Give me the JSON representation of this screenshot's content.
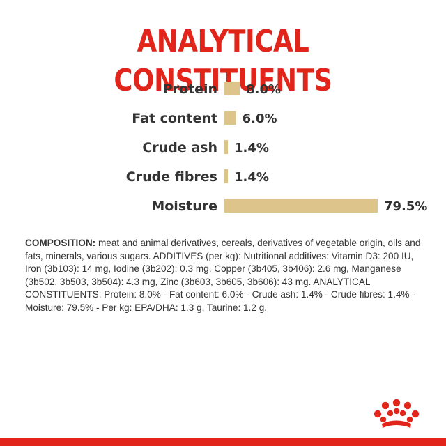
{
  "colors": {
    "brand_red": "#e1251b",
    "bar_fill": "#dcc48a",
    "label_text": "#333333"
  },
  "heading": {
    "title": "ANALYTICAL CONSTITUENTS"
  },
  "chart_data": {
    "type": "bar",
    "orientation": "horizontal",
    "title": "ANALYTICAL CONSTITUENTS",
    "categories": [
      "Protein",
      "Fat content",
      "Crude ash",
      "Crude fibres",
      "Moisture"
    ],
    "values": [
      8.0,
      6.0,
      1.4,
      1.4,
      79.5
    ],
    "value_labels": [
      "8.0%",
      "6.0%",
      "1.4%",
      "1.4%",
      "79.5%"
    ],
    "unit": "%",
    "xlim": [
      0,
      79.5
    ],
    "grid": false,
    "legend": "none"
  },
  "composition": {
    "lead": "COMPOSITION:",
    "text": " meat and animal derivatives, cereals, derivatives of vegetable origin, oils and fats, minerals, various sugars. ADDITIVES (per kg): Nutritional additives: Vitamin D3: 200 IU, Iron (3b103): 14 mg, Iodine (3b202): 0.3 mg, Copper (3b405, 3b406): 2.6 mg, Manganese (3b502, 3b503, 3b504): 4.3 mg, Zinc (3b603, 3b605, 3b606): 43 mg. ANALYTICAL CONSTITUENTS: Protein: 8.0% - Fat content: 6.0% - Crude ash: 1.4% - Crude fibres: 1.4% - Moisture: 79.5% - Per kg: EPA/DHA: 1.3 g, Taurine: 1.2 g."
  },
  "icons": {
    "logo": "crown-logo-icon"
  }
}
